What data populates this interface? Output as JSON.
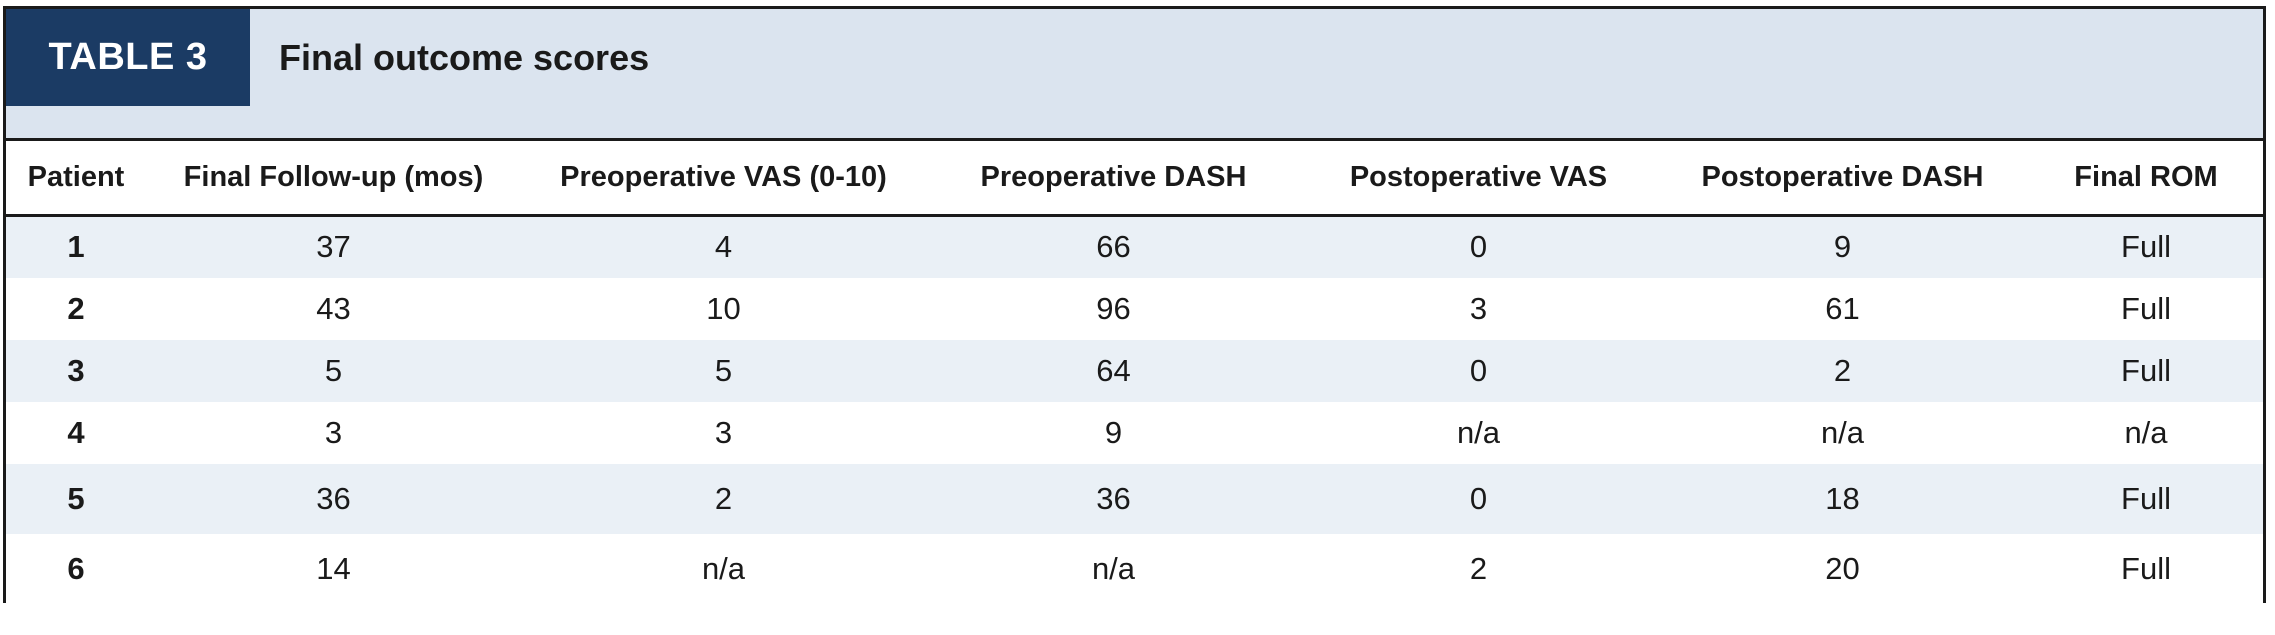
{
  "table": {
    "label": "TABLE 3",
    "title": "Final outcome scores",
    "columns": [
      "Patient",
      "Final Follow-up (mos)",
      "Preoperative VAS (0-10)",
      "Preoperative DASH",
      "Postoperative VAS",
      "Postoperative DASH",
      "Final ROM"
    ],
    "rows": [
      [
        "1",
        "37",
        "4",
        "66",
        "0",
        "9",
        "Full"
      ],
      [
        "2",
        "43",
        "10",
        "96",
        "3",
        "61",
        "Full"
      ],
      [
        "3",
        "5",
        "5",
        "64",
        "0",
        "2",
        "Full"
      ],
      [
        "4",
        "3",
        "3",
        "9",
        "n/a",
        "n/a",
        "n/a"
      ],
      [
        "5",
        "36",
        "2",
        "36",
        "0",
        "18",
        "Full"
      ],
      [
        "6",
        "14",
        "n/a",
        "n/a",
        "2",
        "20",
        "Full"
      ]
    ]
  },
  "colors": {
    "label_background": "#1b3b64",
    "title_band": "#dbe4ef",
    "row_stripe": "#eaf0f6",
    "border": "#1a1a1a"
  }
}
